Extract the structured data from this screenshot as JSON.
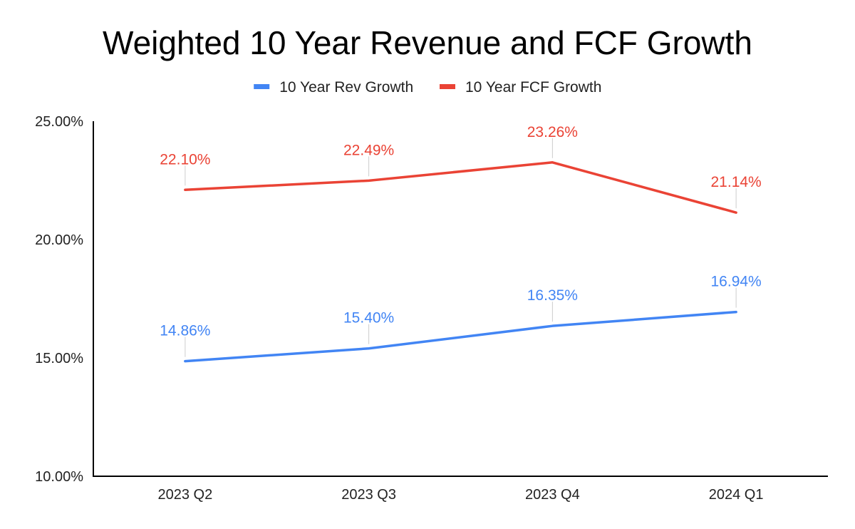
{
  "chart_data": {
    "type": "line",
    "title": "Weighted 10 Year Revenue and FCF Growth",
    "xlabel": "",
    "ylabel": "",
    "categories": [
      "2023 Q2",
      "2023 Q3",
      "2023 Q4",
      "2024 Q1"
    ],
    "ylim": [
      10,
      25
    ],
    "yticks": [
      10,
      15,
      20,
      25
    ],
    "ytick_labels": [
      "10.00%",
      "15.00%",
      "20.00%",
      "25.00%"
    ],
    "legend_position": "top",
    "grid": false,
    "series": [
      {
        "name": "10 Year Rev Growth",
        "color": "#4285f4",
        "values": [
          14.86,
          15.4,
          16.35,
          16.94
        ],
        "labels": [
          "14.86%",
          "15.40%",
          "16.35%",
          "16.94%"
        ]
      },
      {
        "name": "10 Year FCF Growth",
        "color": "#ea4335",
        "values": [
          22.1,
          22.49,
          23.26,
          21.14
        ],
        "labels": [
          "22.10%",
          "22.49%",
          "23.26%",
          "21.14%"
        ]
      }
    ]
  }
}
